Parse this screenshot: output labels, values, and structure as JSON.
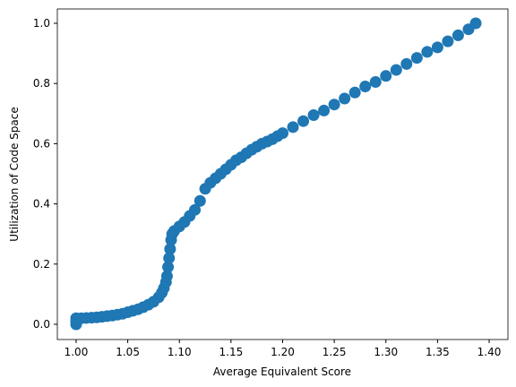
{
  "chart_data": {
    "type": "scatter",
    "xlabel": "Average Equivalent Score",
    "ylabel": "Utilization of Code Space",
    "color": "#1f77b4",
    "x": [
      1.0,
      1.0,
      1.0,
      1.005,
      1.01,
      1.015,
      1.02,
      1.025,
      1.03,
      1.035,
      1.04,
      1.045,
      1.05,
      1.055,
      1.06,
      1.065,
      1.07,
      1.075,
      1.08,
      1.083,
      1.085,
      1.087,
      1.088,
      1.089,
      1.09,
      1.091,
      1.092,
      1.093,
      1.095,
      1.1,
      1.105,
      1.11,
      1.115,
      1.12,
      1.125,
      1.13,
      1.135,
      1.14,
      1.145,
      1.15,
      1.155,
      1.16,
      1.165,
      1.17,
      1.175,
      1.18,
      1.185,
      1.19,
      1.195,
      1.2,
      1.21,
      1.22,
      1.23,
      1.24,
      1.25,
      1.26,
      1.27,
      1.28,
      1.29,
      1.3,
      1.31,
      1.32,
      1.33,
      1.34,
      1.35,
      1.36,
      1.37,
      1.38,
      1.387
    ],
    "values": [
      0.0,
      0.01,
      0.02,
      0.02,
      0.021,
      0.022,
      0.023,
      0.025,
      0.027,
      0.029,
      0.032,
      0.035,
      0.04,
      0.045,
      0.05,
      0.057,
      0.065,
      0.075,
      0.09,
      0.105,
      0.12,
      0.14,
      0.16,
      0.19,
      0.22,
      0.25,
      0.28,
      0.3,
      0.31,
      0.325,
      0.34,
      0.36,
      0.38,
      0.41,
      0.45,
      0.47,
      0.485,
      0.5,
      0.515,
      0.53,
      0.545,
      0.555,
      0.568,
      0.58,
      0.59,
      0.6,
      0.607,
      0.615,
      0.625,
      0.635,
      0.655,
      0.675,
      0.695,
      0.71,
      0.73,
      0.75,
      0.77,
      0.79,
      0.805,
      0.825,
      0.845,
      0.865,
      0.885,
      0.905,
      0.92,
      0.94,
      0.96,
      0.98,
      1.0
    ],
    "xlim": [
      0.9818,
      1.4182
    ],
    "ylim": [
      -0.0506,
      1.0476
    ],
    "xticks": [
      {
        "value": 1.0,
        "label": "1.00"
      },
      {
        "value": 1.05,
        "label": "1.05"
      },
      {
        "value": 1.1,
        "label": "1.10"
      },
      {
        "value": 1.15,
        "label": "1.15"
      },
      {
        "value": 1.2,
        "label": "1.20"
      },
      {
        "value": 1.25,
        "label": "1.25"
      },
      {
        "value": 1.3,
        "label": "1.30"
      },
      {
        "value": 1.35,
        "label": "1.35"
      },
      {
        "value": 1.4,
        "label": "1.40"
      }
    ],
    "yticks": [
      {
        "value": 0,
        "label": "0.0"
      },
      0.2,
      0.4,
      0.6,
      0.8,
      {
        "value": 1,
        "label": "1.0"
      }
    ]
  }
}
